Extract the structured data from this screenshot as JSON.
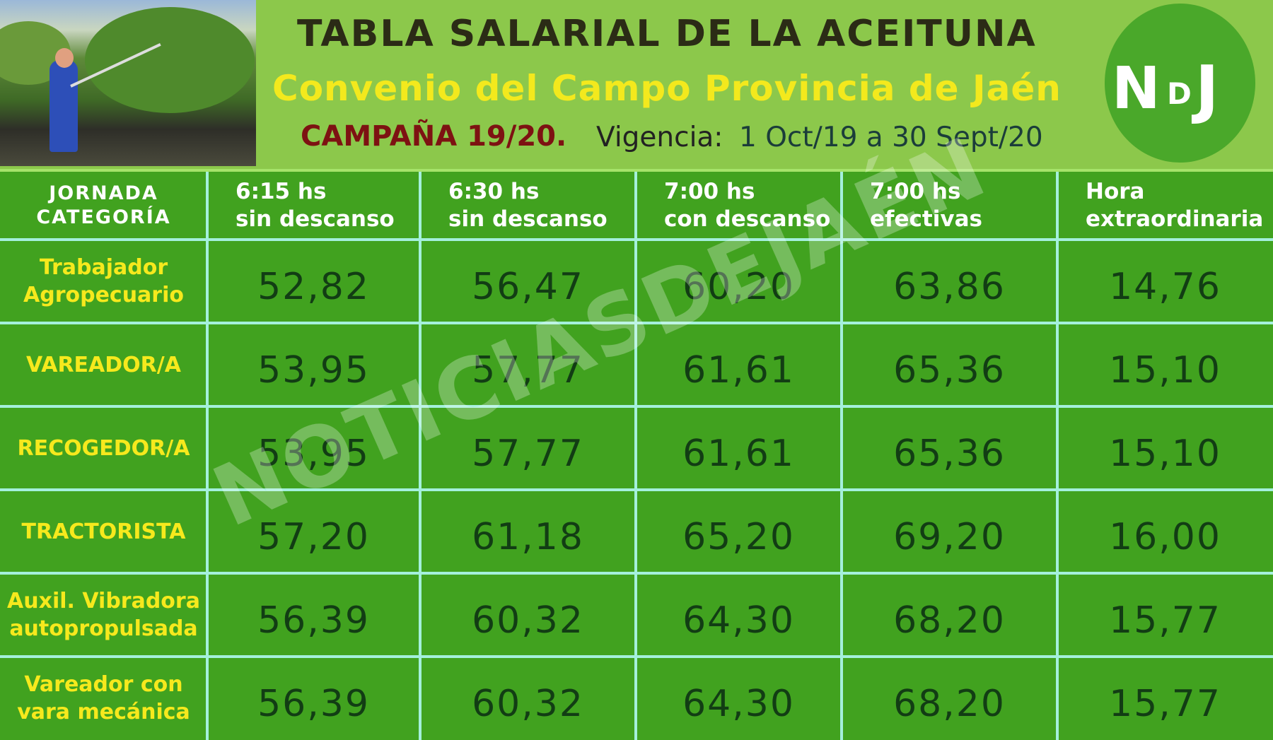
{
  "header": {
    "title": "TABLA SALARIAL DE LA ACEITUNA",
    "subtitle": "Convenio del Campo Provincia de Jaén",
    "campaign": "CAMPAÑA 19/20.",
    "validity_label": "Vigencia:",
    "validity_dates": "1 Oct/19 a 30 Sept/20"
  },
  "logo": {
    "letters": [
      "N",
      "D",
      "J"
    ]
  },
  "watermark": "NOTICIASDEJAÉN",
  "table": {
    "columns": [
      [
        "JORNADA",
        "CATEGORÍA"
      ],
      [
        "6:15 hs",
        "sin descanso"
      ],
      [
        "6:30 hs",
        "sin descanso"
      ],
      [
        "7:00 hs",
        "con descanso"
      ],
      [
        "7:00 hs",
        "efectivas"
      ],
      [
        "Hora",
        "extraordinaria"
      ]
    ],
    "rows": [
      {
        "category": [
          "Trabajador",
          "Agropecuario"
        ],
        "values": [
          "52,82",
          "56,47",
          "60,20",
          "63,86",
          "14,76"
        ]
      },
      {
        "category": [
          "VAREADOR/A"
        ],
        "values": [
          "53,95",
          "57,77",
          "61,61",
          "65,36",
          "15,10"
        ]
      },
      {
        "category": [
          "RECOGEDOR/A"
        ],
        "values": [
          "53,95",
          "57,77",
          "61,61",
          "65,36",
          "15,10"
        ]
      },
      {
        "category": [
          "TRACTORISTA"
        ],
        "values": [
          "57,20",
          "61,18",
          "65,20",
          "69,20",
          "16,00"
        ]
      },
      {
        "category": [
          "Auxil. Vibradora",
          "autopropulsada"
        ],
        "values": [
          "56,39",
          "60,32",
          "64,30",
          "68,20",
          "15,77"
        ]
      },
      {
        "category": [
          "Vareador con",
          "vara mecánica"
        ],
        "values": [
          "56,39",
          "60,32",
          "64,30",
          "68,20",
          "15,77"
        ]
      }
    ]
  }
}
